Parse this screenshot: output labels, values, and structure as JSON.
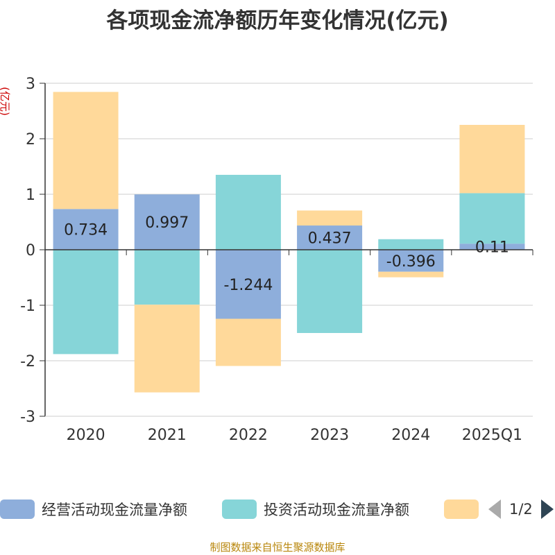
{
  "title": "各项现金流净额历年变化情况(亿元)",
  "footer": "制图数据来自恒生聚源数据库",
  "legend_pager": {
    "text": "1/2"
  },
  "colors": {
    "operating": "#8eaedb",
    "investing": "#86d5d8",
    "financing": "#ffd99a"
  },
  "chart_data": {
    "type": "bar",
    "stacked": true,
    "title": "各项现金流净额历年变化情况(亿元)",
    "ylabel": "(亿元)",
    "ylim": [
      -3,
      3
    ],
    "yticks": [
      3,
      2,
      1,
      0,
      -1,
      -2,
      -3
    ],
    "categories": [
      "2020",
      "2021",
      "2022",
      "2023",
      "2024",
      "2025Q1"
    ],
    "series": [
      {
        "name": "经营活动现金流量净额",
        "color": "#8eaedb",
        "values": [
          0.734,
          0.997,
          -1.244,
          0.437,
          -0.396,
          0.11
        ],
        "labels": [
          "0.734",
          "0.997",
          "-1.244",
          "0.437",
          "-0.396",
          "0.11"
        ]
      },
      {
        "name": "投资活动现金流量净额",
        "color": "#86d5d8",
        "values": [
          -1.88,
          -0.99,
          1.35,
          -1.5,
          0.19,
          0.91
        ],
        "labels": null
      },
      {
        "color": "#ffd99a",
        "values": [
          2.11,
          -1.58,
          -0.85,
          0.27,
          -0.1,
          1.23
        ],
        "labels": null
      }
    ],
    "grid": true,
    "legend_position": "bottom"
  }
}
